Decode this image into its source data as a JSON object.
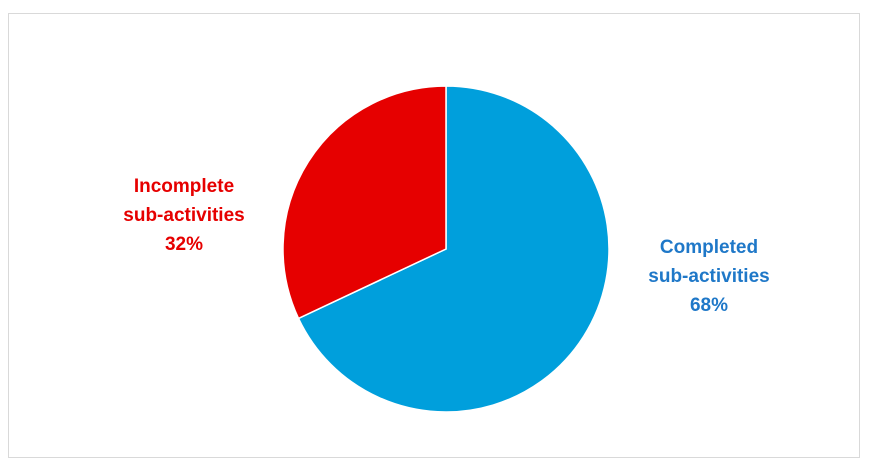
{
  "chart_data": {
    "type": "pie",
    "title": "",
    "start_angle_deg": 0,
    "direction": "clockwise",
    "slices": [
      {
        "label_line1": "Completed",
        "label_line2": "sub-activities",
        "percent_text": "68%",
        "value": 68,
        "color": "#009fdc",
        "label_color": "#1f78c8"
      },
      {
        "label_line1": "Incomplete",
        "label_line2": "sub-activities",
        "percent_text": "32%",
        "value": 32,
        "color": "#e60000",
        "label_color": "#e60000"
      }
    ]
  }
}
